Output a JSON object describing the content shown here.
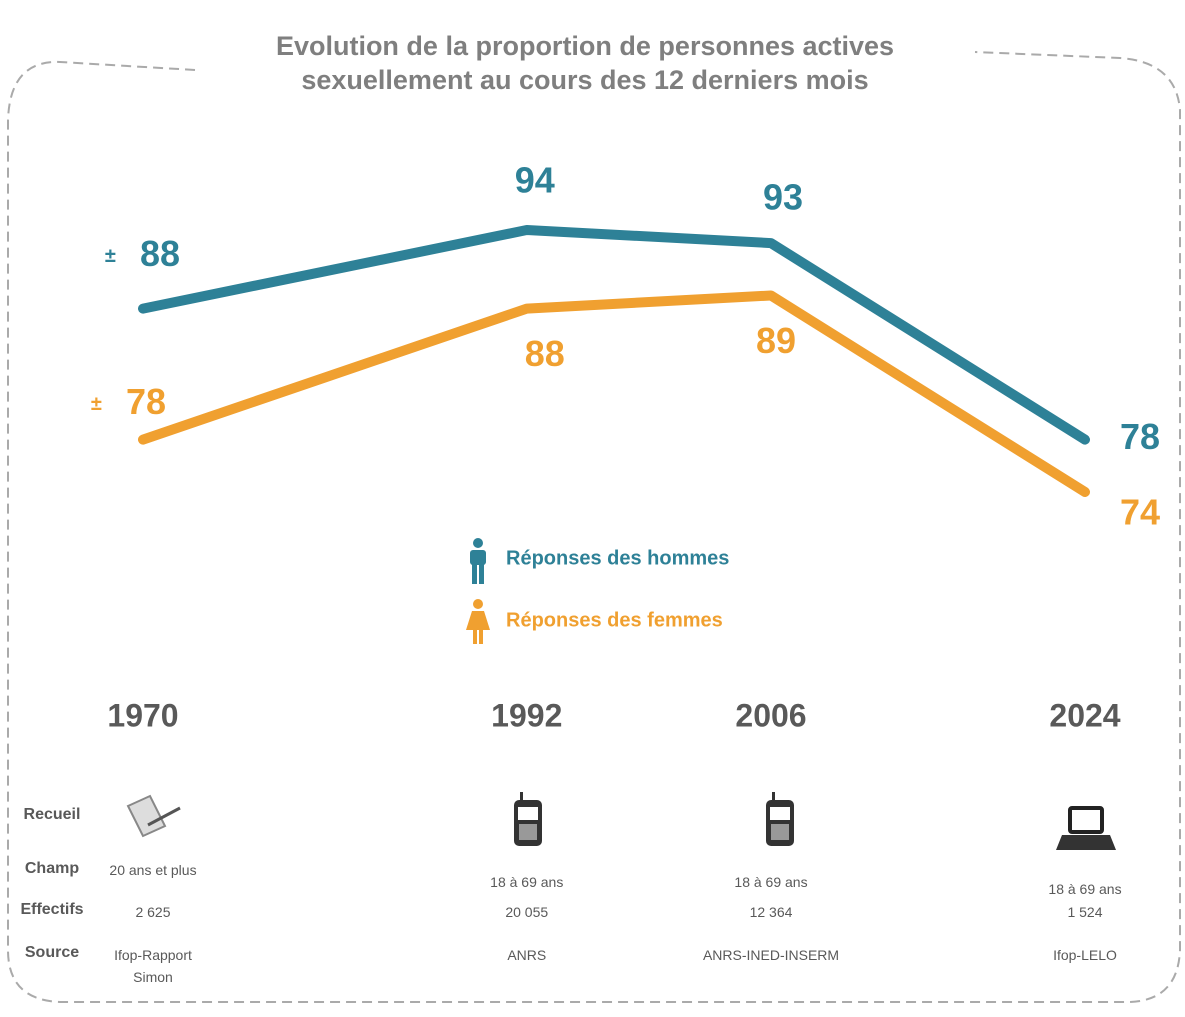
{
  "chart_data": {
    "type": "line",
    "title": [
      "Evolution de la proportion de personnes actives",
      "sexuellement au cours des 12 derniers mois"
    ],
    "x": [
      1970,
      1992,
      2006,
      2024
    ],
    "xlim": [
      1970,
      2024
    ],
    "approx_symbol": "±",
    "series": [
      {
        "name": "Réponses des hommes",
        "color": "#2e8197",
        "values": [
          88,
          94,
          93,
          78
        ]
      },
      {
        "name": "Réponses des femmes",
        "color": "#f0a030",
        "values": [
          78,
          88,
          89,
          74
        ]
      }
    ]
  },
  "table": {
    "row_labels": [
      "Recueil",
      "Champ",
      "Effectifs",
      "Source"
    ],
    "columns": [
      {
        "champ": "20 ans et plus",
        "effectifs": "2 625",
        "source": "Ifop-Rapport Simon"
      },
      {
        "champ": "18 à 69 ans",
        "effectifs": "20 055",
        "source": "ANRS"
      },
      {
        "champ": "18 à 69 ans",
        "effectifs": "12 364",
        "source": "ANRS-INED-INSERM"
      },
      {
        "champ": "18 à 69 ans",
        "effectifs": "1 524",
        "source": "Ifop-LELO"
      }
    ]
  }
}
